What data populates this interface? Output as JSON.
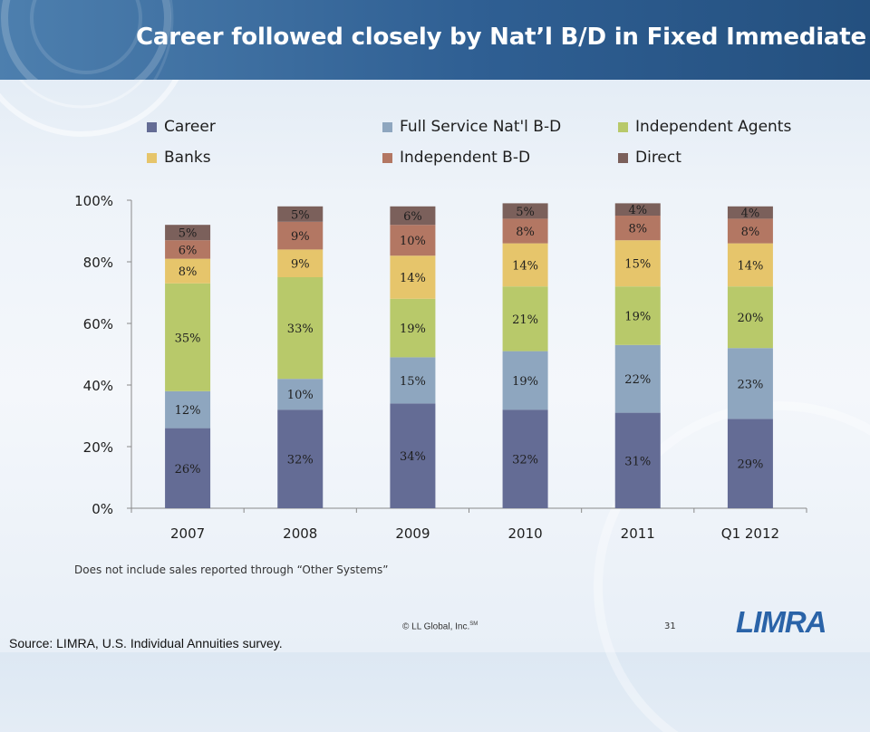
{
  "slide": {
    "title": "Career followed closely by Nat’l B/D in Fixed Immediate",
    "note": "Does not include sales reported through “Other Systems”",
    "source": "Source: LIMRA, U.S. Individual Annuities survey.",
    "copyright": "© LL Global, Inc.",
    "copyright_mark": "SM",
    "page_number": "31",
    "logo_text": "LIMRA"
  },
  "chart_data": {
    "type": "bar",
    "stacked": true,
    "categories": [
      "2007",
      "2008",
      "2009",
      "2010",
      "2011",
      "Q1 2012"
    ],
    "ylim": [
      0,
      100
    ],
    "yticks": [
      "0%",
      "20%",
      "40%",
      "60%",
      "80%",
      "100%"
    ],
    "series": [
      {
        "name": "Career",
        "color": "#646c95",
        "values": [
          26,
          32,
          34,
          32,
          31,
          29
        ]
      },
      {
        "name": "Full Service Nat'l B-D",
        "color": "#8ea6bf",
        "values": [
          12,
          10,
          15,
          19,
          22,
          23
        ]
      },
      {
        "name": "Independent Agents",
        "color": "#b8c96a",
        "values": [
          35,
          33,
          19,
          21,
          19,
          20
        ]
      },
      {
        "name": "Banks",
        "color": "#e6c56b",
        "values": [
          8,
          9,
          14,
          14,
          15,
          14
        ]
      },
      {
        "name": "Independent B-D",
        "color": "#b37763",
        "values": [
          6,
          9,
          10,
          8,
          8,
          8
        ]
      },
      {
        "name": "Direct",
        "color": "#7b605b",
        "values": [
          5,
          5,
          6,
          5,
          4,
          4
        ]
      }
    ],
    "legend_position": "top",
    "grid": false
  }
}
